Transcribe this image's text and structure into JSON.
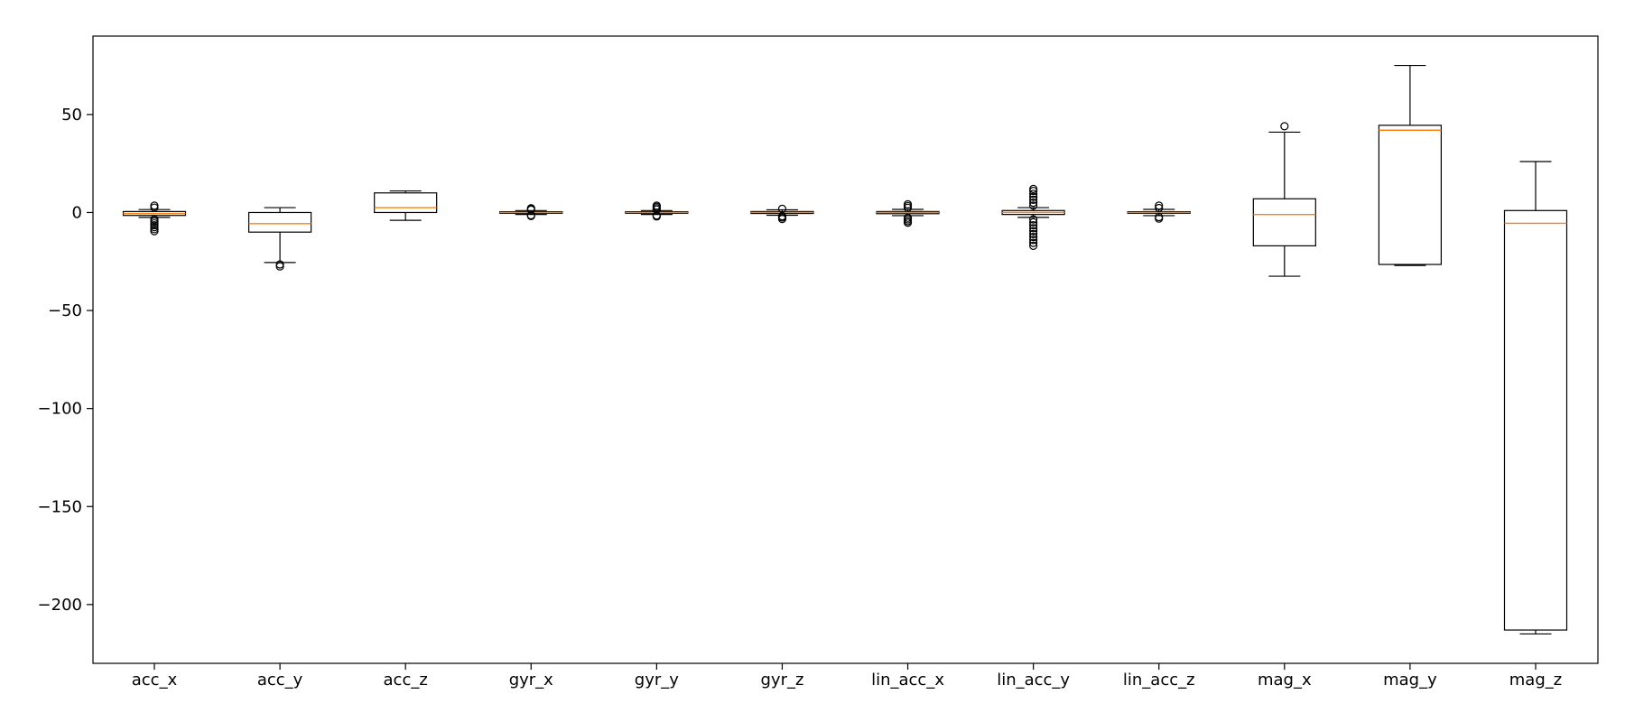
{
  "chart_data": {
    "type": "box",
    "title": "",
    "xlabel": "",
    "ylabel": "",
    "ylim": [
      -230,
      90
    ],
    "yticks": [
      50,
      0,
      -50,
      -100,
      -150,
      -200
    ],
    "ytick_labels": [
      "50",
      "0",
      "−50",
      "−100",
      "−150",
      "−200"
    ],
    "grid": false,
    "colors": {
      "box": "#000000",
      "median": "#ff7f0e",
      "flier": "#000000"
    },
    "boxes": [
      {
        "label": "acc_x",
        "q1": -1.5,
        "median": -0.5,
        "q3": 0.5,
        "whisker_low": -2.5,
        "whisker_high": 1.5,
        "fliers": [
          -9.5,
          -8.5,
          -7.5,
          -6.5,
          -5.5,
          -4.5,
          -3.5,
          2.5,
          3.5
        ]
      },
      {
        "label": "acc_y",
        "q1": -10,
        "median": -5.7,
        "q3": 0,
        "whisker_low": -25.5,
        "whisker_high": 2.5,
        "fliers": [
          -26.5,
          -27.5
        ]
      },
      {
        "label": "acc_z",
        "q1": 0,
        "median": 2.5,
        "q3": 10,
        "whisker_low": -4,
        "whisker_high": 11,
        "fliers": []
      },
      {
        "label": "gyr_x",
        "q1": -0.4,
        "median": 0,
        "q3": 0.4,
        "whisker_low": -1.0,
        "whisker_high": 1.0,
        "fliers": [
          -1.8,
          -1.4,
          1.4,
          1.8,
          2.2
        ]
      },
      {
        "label": "gyr_y",
        "q1": -0.4,
        "median": 0,
        "q3": 0.4,
        "whisker_low": -1.0,
        "whisker_high": 1.0,
        "fliers": [
          -2.0,
          -1.5,
          1.5,
          2.2,
          2.9,
          3.5
        ]
      },
      {
        "label": "gyr_z",
        "q1": -0.5,
        "median": 0,
        "q3": 0.5,
        "whisker_low": -1.4,
        "whisker_high": 1.4,
        "fliers": [
          -3.3,
          -2.5,
          -1.9,
          1.9
        ]
      },
      {
        "label": "lin_acc_x",
        "q1": -0.6,
        "median": 0,
        "q3": 0.5,
        "whisker_low": -1.6,
        "whisker_high": 1.6,
        "fliers": [
          -5.2,
          -4.4,
          -3.5,
          -2.7,
          2.4,
          3.3,
          4.2
        ]
      },
      {
        "label": "lin_acc_y",
        "q1": -1.0,
        "median": 0,
        "q3": 1.0,
        "whisker_low": -2.5,
        "whisker_high": 2.5,
        "fliers": [
          -17,
          -15.5,
          -14,
          -12.5,
          -11,
          -9.5,
          -8,
          -6.5,
          -5,
          -3.5,
          3.5,
          5,
          6.5,
          8,
          9.5,
          11,
          12
        ]
      },
      {
        "label": "lin_acc_z",
        "q1": -0.4,
        "median": 0,
        "q3": 0.4,
        "whisker_low": -1.6,
        "whisker_high": 1.6,
        "fliers": [
          -3.1,
          -2.3,
          2.3,
          3.5
        ]
      },
      {
        "label": "mag_x",
        "q1": -17,
        "median": -1,
        "q3": 7,
        "whisker_low": -32.5,
        "whisker_high": 41,
        "fliers": [
          44
        ]
      },
      {
        "label": "mag_y",
        "q1": -26.5,
        "median": 42,
        "q3": 44.5,
        "whisker_low": -27,
        "whisker_high": 75,
        "fliers": []
      },
      {
        "label": "mag_z",
        "q1": -213,
        "median": -5.5,
        "q3": 1,
        "whisker_low": -215,
        "whisker_high": 26,
        "fliers": []
      }
    ]
  }
}
